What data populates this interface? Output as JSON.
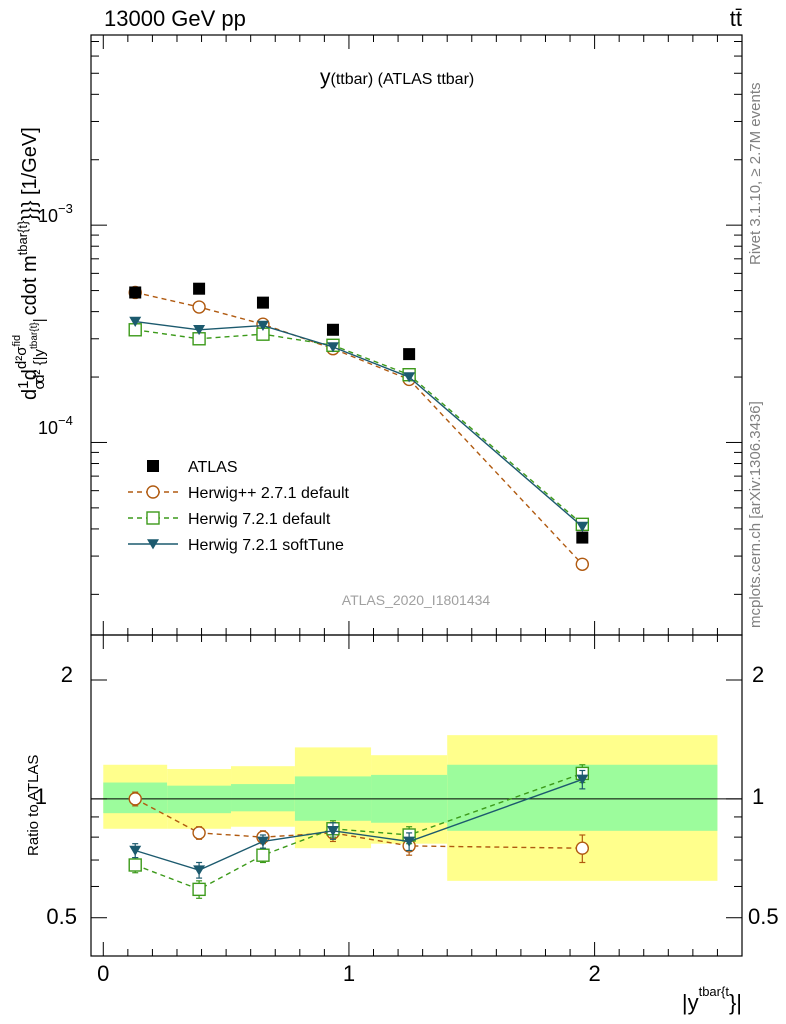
{
  "header": {
    "energy_label": "13000 GeV pp",
    "process_label": "tt̄"
  },
  "side_labels": {
    "rivet": "Rivet 3.1.10, ≥ 2.7M events",
    "mcplots": "mcplots.cern.ch [arXiv:1306.3436]"
  },
  "main_plot": {
    "title_prefix": "y",
    "title_rest": "(ttbar) (ATLAS ttbar)",
    "ylabel": "d\\frac{1}{\\sigma}d\\frac{d^2\\sigma^{fid}}{d^2{|y^{tbar{t}}|} cdot m^{tbar{t}}}}} [1/GeV]",
    "ylabel_parts": {
      "d1": "d",
      "frac1_num": "1",
      "frac1_den": "σ",
      "d2": "d",
      "frac2_num": "d²σ",
      "frac2_num_sup": "fid",
      "frac2_den": "d² {|y",
      "frac2_den_sup": "tbar{t}",
      "frac2_den_end": "|",
      "cdot": "cdot m",
      "cdot_sup": "tbar{t}",
      "end": "}}} [1/GeV]"
    },
    "tick_labels": {
      "e3_base": "10",
      "e3_exp": "−3",
      "e4_base": "10",
      "e4_exp": "−4"
    },
    "watermark": "ATLAS_2020_I1801434"
  },
  "ratio_plot": {
    "ylabel": "Ratio to ATLAS",
    "ytick_labels": [
      "2",
      "1",
      "0.5"
    ],
    "ytick_labels_right": [
      "2",
      "1",
      "0.5"
    ],
    "xtick_labels": [
      "0",
      "1",
      "2"
    ],
    "xlabel_base": "|y",
    "xlabel_sup": "tbar{t",
    "xlabel_end": "}|"
  },
  "legend": [
    {
      "label": "ATLAS",
      "color": "#000000",
      "marker": "square-filled"
    },
    {
      "label": "Herwig++ 2.7.1 default",
      "color": "#b05a10",
      "marker": "circle-open",
      "dash": "dashed"
    },
    {
      "label": "Herwig 7.2.1 default",
      "color": "#3c9a1a",
      "marker": "square-open",
      "dash": "dashed"
    },
    {
      "label": "Herwig 7.2.1 softTune",
      "color": "#1c5a6e",
      "marker": "triangle-down-filled",
      "dash": "solid"
    }
  ],
  "chart_data": [
    {
      "type": "scatter",
      "y_scale": "log",
      "xlim": [
        -0.05,
        2.6
      ],
      "ylim": [
        1.3e-05,
        0.0075
      ],
      "bin_edges": [
        0,
        0.26,
        0.52,
        0.78,
        1.09,
        1.4,
        2.5
      ],
      "x": [
        0.13,
        0.39,
        0.65,
        0.935,
        1.245,
        1.95
      ],
      "series": [
        {
          "name": "ATLAS",
          "values": [
            0.00049,
            0.00051,
            0.00044,
            0.00033,
            0.000255,
            3.65e-05
          ]
        },
        {
          "name": "Herwig++ 2.7.1 default",
          "values": [
            0.00049,
            0.00042,
            0.00035,
            0.00027,
            0.000195,
            2.75e-05
          ]
        },
        {
          "name": "Herwig 7.2.1 default",
          "values": [
            0.00033,
            0.0003,
            0.000315,
            0.00028,
            0.000205,
            4.2e-05
          ]
        },
        {
          "name": "Herwig 7.2.1 softTune",
          "values": [
            0.00036,
            0.00033,
            0.000345,
            0.000275,
            0.0002,
            4.1e-05
          ]
        }
      ]
    },
    {
      "type": "scatter",
      "y_scale": "log",
      "xlim": [
        -0.05,
        2.6
      ],
      "ylim": [
        0.4,
        2.6
      ],
      "bin_edges": [
        0,
        0.26,
        0.52,
        0.78,
        1.09,
        1.4,
        2.5
      ],
      "band_inner": [
        [
          0.92,
          1.1
        ],
        [
          0.92,
          1.08
        ],
        [
          0.93,
          1.09
        ],
        [
          0.88,
          1.14
        ],
        [
          0.87,
          1.15
        ],
        [
          0.83,
          1.22
        ]
      ],
      "band_outer": [
        [
          0.84,
          1.22
        ],
        [
          0.84,
          1.19
        ],
        [
          0.85,
          1.21
        ],
        [
          0.75,
          1.35
        ],
        [
          0.77,
          1.29
        ],
        [
          0.62,
          1.45
        ]
      ],
      "x": [
        0.13,
        0.39,
        0.65,
        0.935,
        1.245,
        1.95
      ],
      "series": [
        {
          "name": "Herwig++ 2.7.1 default",
          "values": [
            1.0,
            0.82,
            0.8,
            0.82,
            0.76,
            0.75
          ],
          "errors": [
            0.04,
            0.03,
            0.03,
            0.04,
            0.04,
            0.06
          ]
        },
        {
          "name": "Herwig 7.2.1 default",
          "values": [
            0.68,
            0.59,
            0.72,
            0.84,
            0.81,
            1.16
          ],
          "errors": [
            0.03,
            0.03,
            0.03,
            0.04,
            0.04,
            0.06
          ]
        },
        {
          "name": "Herwig 7.2.1 softTune",
          "values": [
            0.74,
            0.66,
            0.78,
            0.83,
            0.78,
            1.12
          ],
          "errors": [
            0.03,
            0.03,
            0.03,
            0.04,
            0.04,
            0.06
          ]
        }
      ]
    }
  ]
}
